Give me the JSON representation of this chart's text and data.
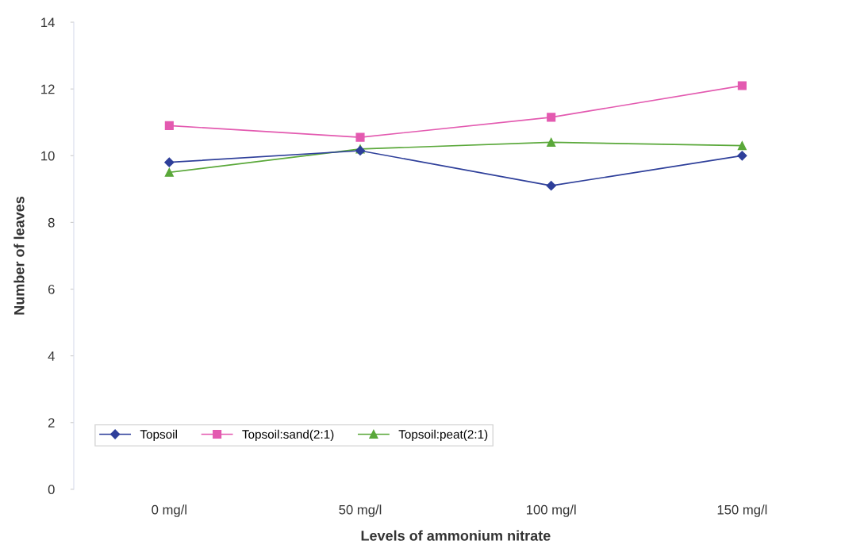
{
  "chart_data": {
    "type": "line",
    "xlabel": "Levels of ammonium nitrate",
    "ylabel": "Number of leaves",
    "categories": [
      "0 mg/l",
      "50 mg/l",
      "100 mg/l",
      "150 mg/l"
    ],
    "series": [
      {
        "name": "Topsoil",
        "color": "#2e3f9a",
        "marker": "diamond",
        "values": [
          9.8,
          10.15,
          9.1,
          10.0
        ]
      },
      {
        "name": "Topsoil:sand(2:1)",
        "color": "#e35ab0",
        "marker": "square",
        "values": [
          10.9,
          10.55,
          11.15,
          12.1
        ]
      },
      {
        "name": "Topsoil:peat(2:1)",
        "color": "#5aa83a",
        "marker": "triangle",
        "values": [
          9.5,
          10.2,
          10.4,
          10.3
        ]
      }
    ],
    "ylim": [
      0,
      14
    ],
    "yticks": [
      0,
      2,
      4,
      6,
      8,
      10,
      12,
      14
    ],
    "grid": false,
    "legend": "bottom left"
  }
}
